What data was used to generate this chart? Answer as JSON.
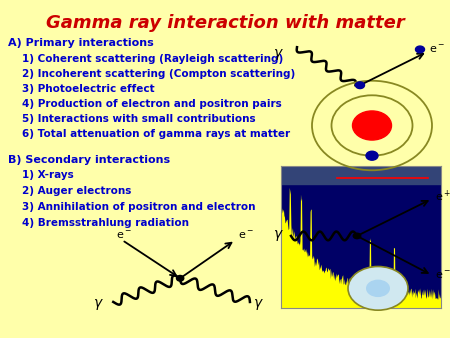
{
  "title": "Gamma ray interaction with matter",
  "title_color": "#cc0000",
  "title_fontsize": 13,
  "bg_color": "#ffffaa",
  "text_color": "#0000cc",
  "section_a": "A) Primary interactions",
  "items_a": [
    "1) Coherent scattering (Rayleigh scattering)",
    "2) Incoherent scattering (Compton scattering)",
    "3) Photoelectric effect",
    "4) Production of electron and positron pairs",
    "5) Interactions with small contributions",
    "6) Total attenuation of gamma rays at matter"
  ],
  "section_b": "B) Secondary interactions",
  "items_b": [
    "1) X-rays",
    "2) Auger electrons",
    "3) Annihilation of positron and electron",
    "4) Bremsstrahlung radiation"
  ],
  "section_fontsize": 8,
  "item_fontsize": 7.5
}
